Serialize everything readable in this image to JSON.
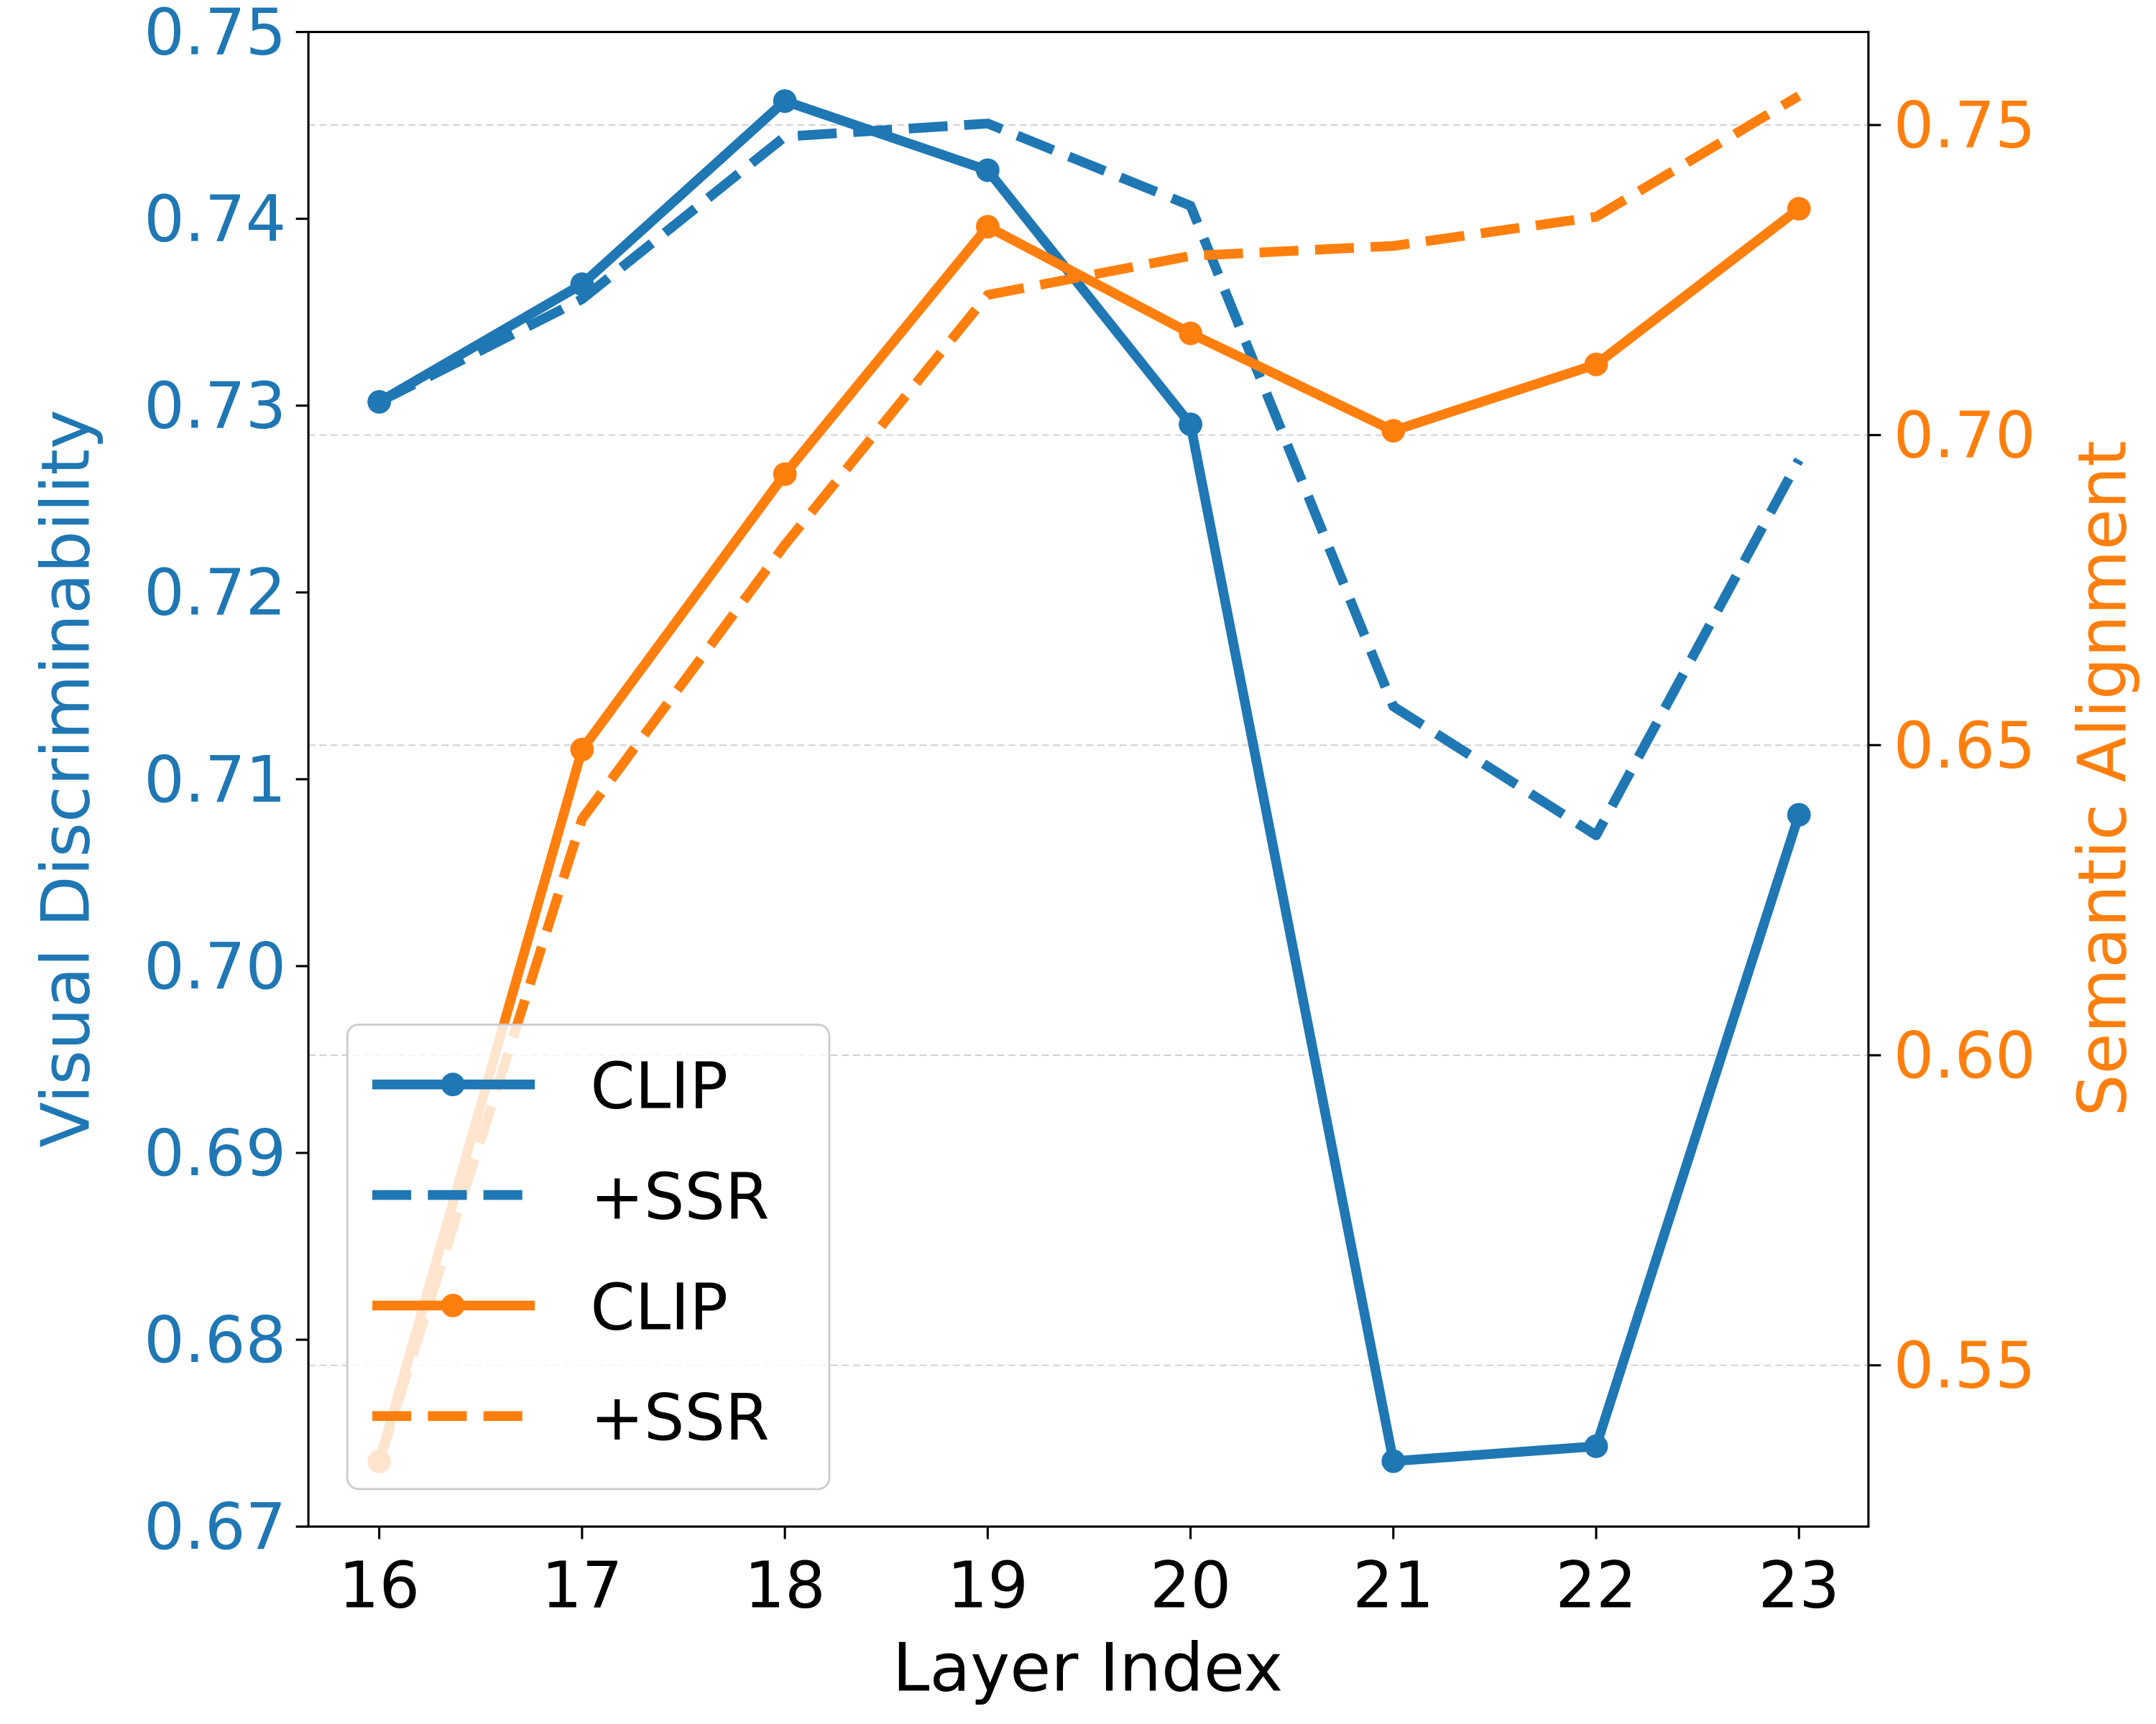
{
  "chart_data": {
    "type": "line",
    "title": "",
    "xlabel": "Layer Index",
    "ylabel_left": "Visual Discriminability",
    "ylabel_right": "Semantic Alignment",
    "x": [
      16,
      17,
      18,
      19,
      20,
      21,
      22,
      23
    ],
    "x_ticks": [
      "16",
      "17",
      "18",
      "19",
      "20",
      "21",
      "22",
      "23"
    ],
    "ylim_left": [
      0.67,
      0.75
    ],
    "yticks_left": [
      "0.67",
      "0.68",
      "0.69",
      "0.70",
      "0.71",
      "0.72",
      "0.73",
      "0.74",
      "0.75"
    ],
    "ylim_right": [
      0.524,
      0.765
    ],
    "yticks_right": [
      "0.55",
      "0.60",
      "0.65",
      "0.70",
      "0.75"
    ],
    "grid": "horizontal dashed at right-axis ticks",
    "legend_placement": "lower-left",
    "colors": {
      "left_axis": "#1f77b4",
      "right_axis": "#ff7f0e"
    },
    "series": [
      {
        "name": "CLIP",
        "axis": "left",
        "style": "solid-marker",
        "color": "#1f77b4",
        "values": [
          0.7302,
          0.7365,
          0.7463,
          0.7426,
          0.729,
          0.6735,
          0.6743,
          0.7081
        ]
      },
      {
        "name": "+SSR",
        "axis": "left",
        "style": "dashed",
        "color": "#1f77b4",
        "values": [
          0.7302,
          0.7357,
          0.7444,
          0.7451,
          0.7407,
          0.7139,
          0.707,
          0.7271
        ]
      },
      {
        "name": "CLIP",
        "axis": "right",
        "style": "solid-marker",
        "color": "#ff7f0e",
        "values": [
          0.5345,
          0.6493,
          0.6937,
          0.7336,
          0.7164,
          0.7007,
          0.7114,
          0.7365
        ]
      },
      {
        "name": "+SSR",
        "axis": "right",
        "style": "dashed",
        "color": "#ff7f0e",
        "values": [
          0.5345,
          0.6381,
          0.6823,
          0.7226,
          0.7289,
          0.7305,
          0.7352,
          0.7547
        ]
      }
    ]
  }
}
